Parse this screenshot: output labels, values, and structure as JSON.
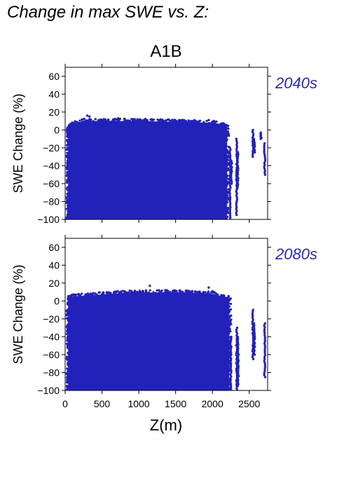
{
  "page": {
    "title": "Change in max SWE vs. Z:"
  },
  "colors": {
    "points": "#2222bb",
    "period_label": "#2a2ab8",
    "axis": "#000000"
  },
  "chart_data": {
    "type": "scatter",
    "title": "A1B",
    "xlabel": "Z(m)",
    "ylabel": "SWE Change (%)",
    "xlim": [
      0,
      2750
    ],
    "ylim": [
      -100,
      70
    ],
    "xticks": [
      0,
      500,
      1000,
      1500,
      2000,
      2500
    ],
    "yticks": [
      -100,
      -80,
      -60,
      -40,
      -20,
      0,
      20,
      40,
      60
    ],
    "panels": [
      {
        "name": "2040s",
        "dense_region": {
          "x": [
            40,
            2200
          ],
          "y_top": [
            {
              "x": 40,
              "y": 5
            },
            {
              "x": 250,
              "y": 10
            },
            {
              "x": 1000,
              "y": 10
            },
            {
              "x": 1500,
              "y": 9
            },
            {
              "x": 2000,
              "y": 8
            },
            {
              "x": 2200,
              "y": 5
            }
          ],
          "y_bottom": -100
        },
        "outliers": [
          {
            "x": 300,
            "y": 16
          },
          {
            "x": 330,
            "y": 15
          },
          {
            "x": 720,
            "y": 13
          },
          {
            "x": 1000,
            "y": 11
          },
          {
            "x": 1950,
            "y": 11
          }
        ],
        "isolated_clusters": [
          {
            "x": 2240,
            "y_top": -20,
            "y_bottom": -100
          },
          {
            "x": 2260,
            "y_top": -35,
            "y_bottom": -60
          },
          {
            "x": 2330,
            "y_top": -10,
            "y_bottom": -95
          },
          {
            "x": 2345,
            "y_top": -25,
            "y_bottom": -65
          },
          {
            "x": 2550,
            "y_top": 0,
            "y_bottom": -30
          },
          {
            "x": 2570,
            "y_top": -10,
            "y_bottom": -25
          },
          {
            "x": 2660,
            "y_top": -3,
            "y_bottom": -10
          },
          {
            "x": 2710,
            "y_top": -15,
            "y_bottom": -50
          }
        ]
      },
      {
        "name": "2080s",
        "dense_region": {
          "x": [
            40,
            2230
          ],
          "y_top": [
            {
              "x": 40,
              "y": 3
            },
            {
              "x": 100,
              "y": 5
            },
            {
              "x": 800,
              "y": 9
            },
            {
              "x": 1500,
              "y": 10
            },
            {
              "x": 2000,
              "y": 8
            },
            {
              "x": 2230,
              "y": 3
            }
          ],
          "y_bottom": -100
        },
        "outliers": [
          {
            "x": 1150,
            "y": 17
          },
          {
            "x": 1950,
            "y": 15
          },
          {
            "x": 2000,
            "y": 11
          }
        ],
        "isolated_clusters": [
          {
            "x": 2250,
            "y_top": -40,
            "y_bottom": -100
          },
          {
            "x": 2330,
            "y_top": -30,
            "y_bottom": -100
          },
          {
            "x": 2350,
            "y_top": -40,
            "y_bottom": -95
          },
          {
            "x": 2550,
            "y_top": -10,
            "y_bottom": -65
          },
          {
            "x": 2570,
            "y_top": -25,
            "y_bottom": -60
          },
          {
            "x": 2710,
            "y_top": -25,
            "y_bottom": -85
          }
        ]
      }
    ]
  }
}
